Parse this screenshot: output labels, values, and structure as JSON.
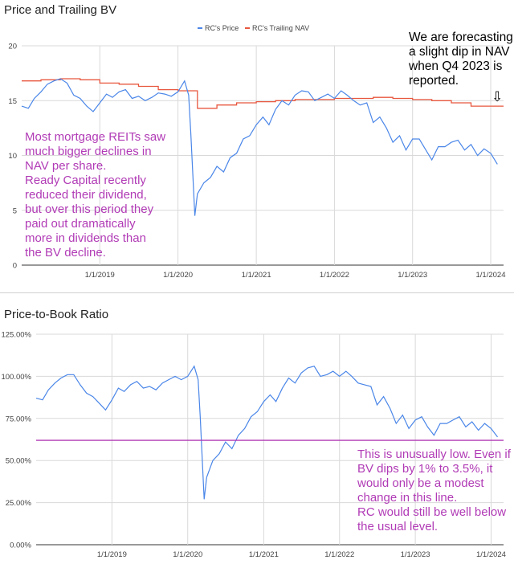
{
  "chart_data": [
    {
      "type": "line",
      "title": "Price and Trailing BV",
      "legend": {
        "position": "top-center",
        "entries": [
          "RC's Price",
          "RC's Trailing NAV"
        ]
      },
      "x_ticks": [
        "1/1/2019",
        "1/1/2020",
        "1/1/2021",
        "1/1/2022",
        "1/1/2023",
        "1/1/2024"
      ],
      "y_ticks": [
        "0",
        "5",
        "10",
        "15",
        "20"
      ],
      "ylim": [
        0,
        20
      ],
      "xlim": [
        "2018-01-01",
        "2024-03-01"
      ],
      "grid": true,
      "colors": {
        "price": "#4a86e8",
        "nav": "#e8573f"
      },
      "series": [
        {
          "name": "RC's Price",
          "x": [
            "2018-01-01",
            "2018-02-01",
            "2018-03-01",
            "2018-04-01",
            "2018-05-01",
            "2018-06-01",
            "2018-07-01",
            "2018-08-01",
            "2018-09-01",
            "2018-10-01",
            "2018-11-01",
            "2018-12-01",
            "2019-01-01",
            "2019-02-01",
            "2019-03-01",
            "2019-04-01",
            "2019-05-01",
            "2019-06-01",
            "2019-07-01",
            "2019-08-01",
            "2019-09-01",
            "2019-10-01",
            "2019-11-01",
            "2019-12-01",
            "2020-01-01",
            "2020-02-01",
            "2020-02-20",
            "2020-03-01",
            "2020-03-20",
            "2020-04-01",
            "2020-05-01",
            "2020-06-01",
            "2020-07-01",
            "2020-08-01",
            "2020-09-01",
            "2020-10-01",
            "2020-11-01",
            "2020-12-01",
            "2021-01-01",
            "2021-02-01",
            "2021-03-01",
            "2021-04-01",
            "2021-05-01",
            "2021-06-01",
            "2021-07-01",
            "2021-08-01",
            "2021-09-01",
            "2021-10-01",
            "2021-11-01",
            "2021-12-01",
            "2022-01-01",
            "2022-02-01",
            "2022-03-01",
            "2022-04-01",
            "2022-05-01",
            "2022-06-01",
            "2022-07-01",
            "2022-08-01",
            "2022-09-01",
            "2022-10-01",
            "2022-11-01",
            "2022-12-01",
            "2023-01-01",
            "2023-02-01",
            "2023-03-01",
            "2023-04-01",
            "2023-05-01",
            "2023-06-01",
            "2023-07-01",
            "2023-08-01",
            "2023-09-01",
            "2023-10-01",
            "2023-11-01",
            "2023-12-01",
            "2024-01-01",
            "2024-02-01"
          ],
          "values": [
            14.5,
            14.3,
            15.2,
            15.8,
            16.5,
            16.8,
            17.0,
            16.6,
            15.5,
            15.2,
            14.5,
            14.0,
            14.8,
            15.6,
            15.3,
            15.8,
            16.0,
            15.2,
            15.4,
            15.0,
            15.3,
            15.7,
            15.6,
            15.4,
            15.8,
            16.8,
            15.5,
            12.0,
            4.5,
            6.5,
            7.5,
            8.0,
            9.0,
            8.5,
            9.8,
            10.2,
            11.5,
            11.8,
            12.8,
            13.5,
            12.8,
            14.2,
            15.0,
            14.6,
            15.5,
            15.9,
            15.8,
            15.0,
            15.3,
            15.6,
            15.2,
            15.9,
            15.5,
            15.0,
            14.6,
            14.8,
            13.0,
            13.5,
            12.5,
            11.2,
            11.8,
            10.5,
            11.5,
            11.5,
            10.6,
            9.6,
            10.8,
            10.8,
            11.2,
            11.4,
            10.5,
            11.0,
            10.0,
            10.6,
            10.2,
            9.2
          ]
        },
        {
          "name": "RC's Trailing NAV",
          "steps": [
            [
              "2018-01-01",
              16.8
            ],
            [
              "2018-04-01",
              16.9
            ],
            [
              "2018-07-01",
              17.0
            ],
            [
              "2018-10-01",
              16.9
            ],
            [
              "2019-01-01",
              16.6
            ],
            [
              "2019-04-01",
              16.5
            ],
            [
              "2019-07-01",
              16.3
            ],
            [
              "2019-10-01",
              16.0
            ],
            [
              "2020-01-01",
              15.9
            ],
            [
              "2020-04-01",
              14.3
            ],
            [
              "2020-07-01",
              14.6
            ],
            [
              "2020-10-01",
              14.8
            ],
            [
              "2021-01-01",
              14.9
            ],
            [
              "2021-04-01",
              15.0
            ],
            [
              "2021-07-01",
              15.1
            ],
            [
              "2021-10-01",
              15.1
            ],
            [
              "2022-01-01",
              15.2
            ],
            [
              "2022-04-01",
              15.2
            ],
            [
              "2022-07-01",
              15.3
            ],
            [
              "2022-10-01",
              15.2
            ],
            [
              "2023-01-01",
              15.1
            ],
            [
              "2023-04-01",
              15.0
            ],
            [
              "2023-07-01",
              14.8
            ],
            [
              "2023-10-01",
              14.5
            ],
            [
              "2024-03-01",
              14.5
            ]
          ]
        }
      ],
      "annotations": {
        "forecast": [
          "We are forecasting",
          "a slight dip in NAV",
          "when Q4 2023 is",
          "reported."
        ],
        "forecast_arrow": "⇩",
        "note": [
          "Most mortgage REITs saw",
          "much bigger declines in",
          "NAV per share.",
          "Ready Capital recently",
          "reduced their dividend,",
          "but over this period they",
          "paid out dramatically",
          "more in dividends than",
          "the BV decline."
        ]
      }
    },
    {
      "type": "line",
      "title": "Price-to-Book Ratio",
      "x_ticks": [
        "1/1/2019",
        "1/1/2020",
        "1/1/2021",
        "1/1/2022",
        "1/1/2023",
        "1/1/2024"
      ],
      "y_ticks": [
        "0.00%",
        "25.00%",
        "50.00%",
        "75.00%",
        "100.00%",
        "125.00%"
      ],
      "ylim": [
        0,
        125
      ],
      "xlim": [
        "2018-01-01",
        "2024-03-01"
      ],
      "grid": true,
      "colors": {
        "ratio": "#4a86e8",
        "reference": "#b13bb6"
      },
      "series": [
        {
          "x": [
            "2018-01-01",
            "2018-02-01",
            "2018-03-01",
            "2018-04-01",
            "2018-05-01",
            "2018-06-01",
            "2018-07-01",
            "2018-08-01",
            "2018-09-01",
            "2018-10-01",
            "2018-11-01",
            "2018-12-01",
            "2019-01-01",
            "2019-02-01",
            "2019-03-01",
            "2019-04-01",
            "2019-05-01",
            "2019-06-01",
            "2019-07-01",
            "2019-08-01",
            "2019-09-01",
            "2019-10-01",
            "2019-11-01",
            "2019-12-01",
            "2020-01-01",
            "2020-02-01",
            "2020-02-20",
            "2020-03-01",
            "2020-03-20",
            "2020-04-01",
            "2020-05-01",
            "2020-06-01",
            "2020-07-01",
            "2020-08-01",
            "2020-09-01",
            "2020-10-01",
            "2020-11-01",
            "2020-12-01",
            "2021-01-01",
            "2021-02-01",
            "2021-03-01",
            "2021-04-01",
            "2021-05-01",
            "2021-06-01",
            "2021-07-01",
            "2021-08-01",
            "2021-09-01",
            "2021-10-01",
            "2021-11-01",
            "2021-12-01",
            "2022-01-01",
            "2022-02-01",
            "2022-03-01",
            "2022-04-01",
            "2022-05-01",
            "2022-06-01",
            "2022-07-01",
            "2022-08-01",
            "2022-09-01",
            "2022-10-01",
            "2022-11-01",
            "2022-12-01",
            "2023-01-01",
            "2023-02-01",
            "2023-03-01",
            "2023-04-01",
            "2023-05-01",
            "2023-06-01",
            "2023-07-01",
            "2023-08-01",
            "2023-09-01",
            "2023-10-01",
            "2023-11-01",
            "2023-12-01",
            "2024-01-01",
            "2024-02-01"
          ],
          "values": [
            87,
            86,
            92,
            96,
            99,
            101,
            101,
            95,
            90,
            88,
            84,
            80,
            86,
            93,
            91,
            95,
            97,
            93,
            94,
            92,
            96,
            98,
            100,
            98,
            100,
            106,
            98,
            76,
            27,
            40,
            50,
            54,
            61,
            57,
            65,
            69,
            76,
            79,
            85,
            89,
            85,
            93,
            99,
            96,
            102,
            105,
            106,
            100,
            101,
            103,
            100,
            103,
            100,
            96,
            95,
            94,
            83,
            88,
            81,
            72,
            77,
            69,
            74,
            76,
            70,
            65,
            72,
            72,
            74,
            76,
            70,
            73,
            68,
            72,
            69,
            64
          ]
        }
      ],
      "reference_line": {
        "value": 62
      },
      "annotations": {
        "note": [
          "This is unusually low. Even if",
          "BV dips by 1% to 3.5%, it",
          "would only be a modest",
          "change in this line.",
          "RC would still be well below",
          "the usual level."
        ]
      }
    }
  ]
}
